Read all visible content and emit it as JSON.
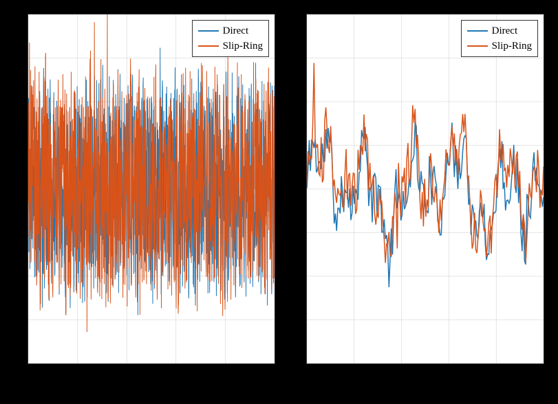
{
  "background_color": "#000000",
  "panel_background": "#ffffff",
  "panel_border_color": "#333333",
  "grid_color": "#cccccc",
  "series": [
    {
      "name": "Direct",
      "color": "#1f77b4"
    },
    {
      "name": "Slip-Ring",
      "color": "#d95319"
    }
  ],
  "left_chart": {
    "type": "line",
    "xlim": [
      0,
      100
    ],
    "ylim": [
      -1.3,
      1.3
    ],
    "ytick_step": 0.325,
    "xtick_step": 20,
    "line_width": 1.0,
    "n_points": 1200,
    "description": "dense noisy oscillation both series",
    "legend_position": "top-right",
    "label_fontsize": 15
  },
  "right_chart": {
    "type": "line",
    "xlim": [
      0,
      10
    ],
    "ylim": [
      -1.3,
      1.3
    ],
    "ytick_step": 0.325,
    "xtick_step": 2,
    "line_width": 1.5,
    "n_points": 200,
    "description": "zoomed segment of oscillation both series",
    "legend_position": "top-right",
    "label_fontsize": 15
  },
  "legend_labels": {
    "direct": "Direct",
    "slip_ring": "Slip-Ring"
  }
}
